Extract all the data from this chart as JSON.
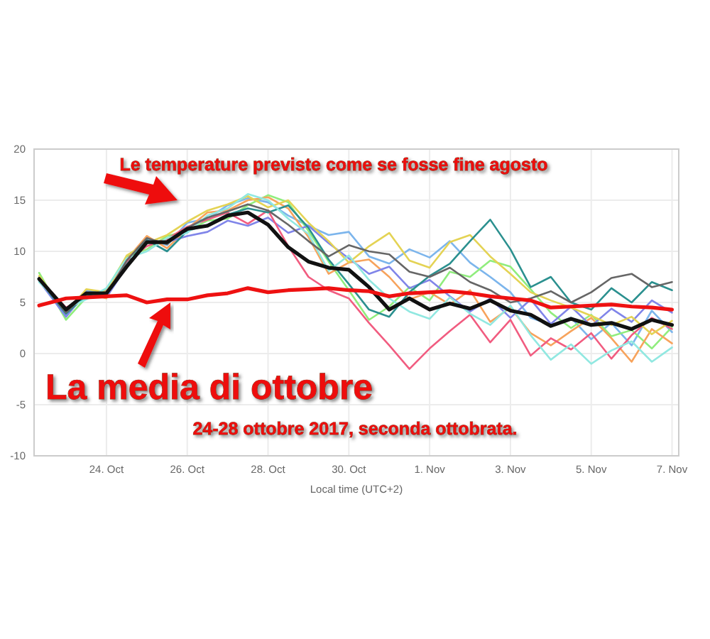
{
  "chart_data": {
    "type": "line",
    "xlabel": "Local time (UTC+2)",
    "annotations": [
      "Le temperature previste come se fosse fine agosto",
      "La media di ottobre",
      "24-28 ottobre 2017, seconda ottobrata."
    ],
    "x": [
      "2017-10-22T08:00",
      "2017-10-23T00:00",
      "2017-10-23T12:00",
      "2017-10-24T00:00",
      "2017-10-24T12:00",
      "2017-10-25T00:00",
      "2017-10-25T12:00",
      "2017-10-26T00:00",
      "2017-10-26T12:00",
      "2017-10-27T00:00",
      "2017-10-27T12:00",
      "2017-10-28T00:00",
      "2017-10-28T12:00",
      "2017-10-29T00:00",
      "2017-10-29T12:00",
      "2017-10-30T00:00",
      "2017-10-30T12:00",
      "2017-10-31T00:00",
      "2017-10-31T12:00",
      "2017-11-01T00:00",
      "2017-11-01T12:00",
      "2017-11-02T00:00",
      "2017-11-02T12:00",
      "2017-11-03T00:00",
      "2017-11-03T12:00",
      "2017-11-04T00:00",
      "2017-11-04T12:00",
      "2017-11-05T00:00",
      "2017-11-05T12:00",
      "2017-11-06T00:00",
      "2017-11-06T12:00",
      "2017-11-07T00:00"
    ],
    "series": [
      {
        "color": "#7cb5ec",
        "values": [
          7.5,
          3.8,
          6.2,
          5.8,
          8.8,
          11.2,
          10.6,
          12.8,
          13.2,
          14.5,
          15.2,
          14.8,
          13.5,
          12.5,
          11.6,
          11.9,
          9.5,
          8.8,
          10.2,
          9.4,
          11.0,
          8.9,
          7.5,
          6.0,
          3.5,
          2.8,
          3.5,
          1.4,
          3.0,
          0.8,
          4.2,
          2.1
        ]
      },
      {
        "color": "#90ed7d",
        "values": [
          7.9,
          3.3,
          5.5,
          6.3,
          9.5,
          10.2,
          11.5,
          12.0,
          13.0,
          13.2,
          14.5,
          15.5,
          14.8,
          12.0,
          9.0,
          6.2,
          3.3,
          4.6,
          6.5,
          5.2,
          8.0,
          7.5,
          9.1,
          8.5,
          6.3,
          4.0,
          2.5,
          3.8,
          1.7,
          2.3,
          0.5,
          2.6
        ]
      },
      {
        "color": "#f7a35c",
        "values": [
          7.4,
          4.1,
          5.9,
          5.4,
          9.2,
          11.5,
          10.3,
          12.2,
          13.8,
          14.0,
          15.0,
          15.3,
          14.2,
          11.4,
          7.8,
          8.9,
          9.2,
          7.5,
          5.3,
          6.0,
          4.8,
          6.2,
          3.1,
          4.5,
          2.0,
          0.8,
          2.2,
          3.5,
          1.5,
          -0.8,
          2.4,
          1.0
        ]
      },
      {
        "color": "#8085e9",
        "values": [
          7.1,
          3.6,
          6.0,
          5.5,
          8.5,
          11.0,
          10.9,
          11.5,
          11.9,
          13.0,
          12.5,
          13.3,
          11.8,
          12.5,
          10.8,
          9.3,
          7.8,
          8.5,
          6.4,
          7.2,
          5.6,
          4.1,
          5.4,
          3.5,
          5.3,
          2.9,
          4.6,
          2.7,
          4.4,
          3.1,
          5.2,
          4.0
        ]
      },
      {
        "color": "#f15c80",
        "values": [
          7.3,
          4.5,
          5.6,
          6.1,
          9.0,
          10.5,
          11.2,
          12.4,
          13.1,
          13.8,
          12.7,
          14.0,
          10.5,
          7.5,
          6.2,
          5.4,
          3.0,
          0.8,
          -1.5,
          0.5,
          2.2,
          3.8,
          1.1,
          3.3,
          -0.2,
          1.5,
          0.4,
          2.0,
          -0.5,
          1.8,
          3.5,
          2.4
        ]
      },
      {
        "color": "#e4d354",
        "values": [
          7.6,
          4.0,
          6.3,
          6.0,
          9.6,
          10.8,
          11.6,
          12.9,
          14.0,
          14.6,
          15.4,
          14.3,
          15.0,
          12.8,
          11.0,
          8.9,
          10.5,
          11.8,
          9.1,
          8.4,
          10.9,
          11.6,
          9.5,
          7.8,
          6.0,
          5.2,
          4.5,
          3.7,
          2.8,
          3.6,
          1.9,
          3.2
        ]
      },
      {
        "color": "#2b908f",
        "values": [
          7.2,
          3.9,
          5.7,
          5.9,
          8.7,
          11.1,
          10.0,
          12.0,
          12.6,
          13.6,
          14.2,
          13.8,
          14.5,
          12.3,
          9.2,
          6.8,
          4.3,
          3.6,
          6.0,
          7.6,
          8.8,
          11.0,
          13.1,
          10.2,
          6.5,
          7.5,
          5.0,
          4.3,
          6.4,
          5.0,
          7.0,
          6.2
        ]
      },
      {
        "color": "#91e8e1",
        "values": [
          7.0,
          4.4,
          5.3,
          6.4,
          9.3,
          10.0,
          11.3,
          11.8,
          13.5,
          14.2,
          15.6,
          15.0,
          13.2,
          11.7,
          8.1,
          9.6,
          7.2,
          5.4,
          4.1,
          3.4,
          5.5,
          3.9,
          2.8,
          4.7,
          1.8,
          -0.6,
          0.9,
          -1.0,
          0.3,
          1.2,
          -0.8,
          0.6
        ]
      },
      {
        "color": "#666666",
        "values": [
          7.3,
          4.0,
          5.9,
          5.7,
          9.1,
          11.3,
          10.7,
          12.3,
          13.3,
          13.9,
          14.6,
          14.0,
          12.6,
          11.0,
          9.5,
          10.6,
          10.0,
          9.7,
          8.0,
          7.5,
          8.4,
          7.0,
          6.2,
          5.0,
          5.4,
          6.1,
          5.0,
          6.0,
          7.4,
          7.8,
          6.5,
          7.0
        ]
      },
      {
        "color": "#111111",
        "values": [
          7.3,
          4.3,
          5.9,
          5.9,
          8.5,
          10.9,
          10.9,
          12.2,
          12.5,
          13.5,
          13.8,
          12.6,
          10.4,
          9.0,
          8.4,
          8.2,
          6.5,
          4.3,
          5.4,
          4.3,
          4.9,
          4.4,
          5.2,
          4.2,
          3.8,
          2.7,
          3.4,
          2.8,
          3.0,
          2.4,
          3.3,
          2.8
        ]
      },
      {
        "color": "#ee1111",
        "values": [
          4.7,
          5.4,
          5.5,
          5.6,
          5.7,
          5.0,
          5.3,
          5.3,
          5.7,
          5.9,
          6.4,
          6.0,
          6.2,
          6.3,
          6.4,
          6.2,
          6.1,
          5.6,
          5.9,
          6.0,
          6.1,
          5.9,
          5.6,
          5.4,
          5.2,
          4.5,
          4.6,
          4.7,
          4.8,
          4.6,
          4.5,
          4.3
        ]
      }
    ],
    "xlim": [
      "2017-10-22T05:00",
      "2017-11-07T04:00"
    ],
    "xticks": [
      {
        "value": "2017-10-24",
        "label": "24. Oct"
      },
      {
        "value": "2017-10-26",
        "label": "26. Oct"
      },
      {
        "value": "2017-10-28",
        "label": "28. Oct"
      },
      {
        "value": "2017-10-30",
        "label": "30. Oct"
      },
      {
        "value": "2017-11-01",
        "label": "1. Nov"
      },
      {
        "value": "2017-11-03",
        "label": "3. Nov"
      },
      {
        "value": "2017-11-05",
        "label": "5. Nov"
      },
      {
        "value": "2017-11-07",
        "label": "7. Nov"
      }
    ],
    "ylim": [
      -10,
      20
    ],
    "yticks": [
      -10,
      -5,
      0,
      5,
      10,
      15,
      20
    ],
    "grid": true,
    "marker": "none",
    "line_style": "solid"
  }
}
